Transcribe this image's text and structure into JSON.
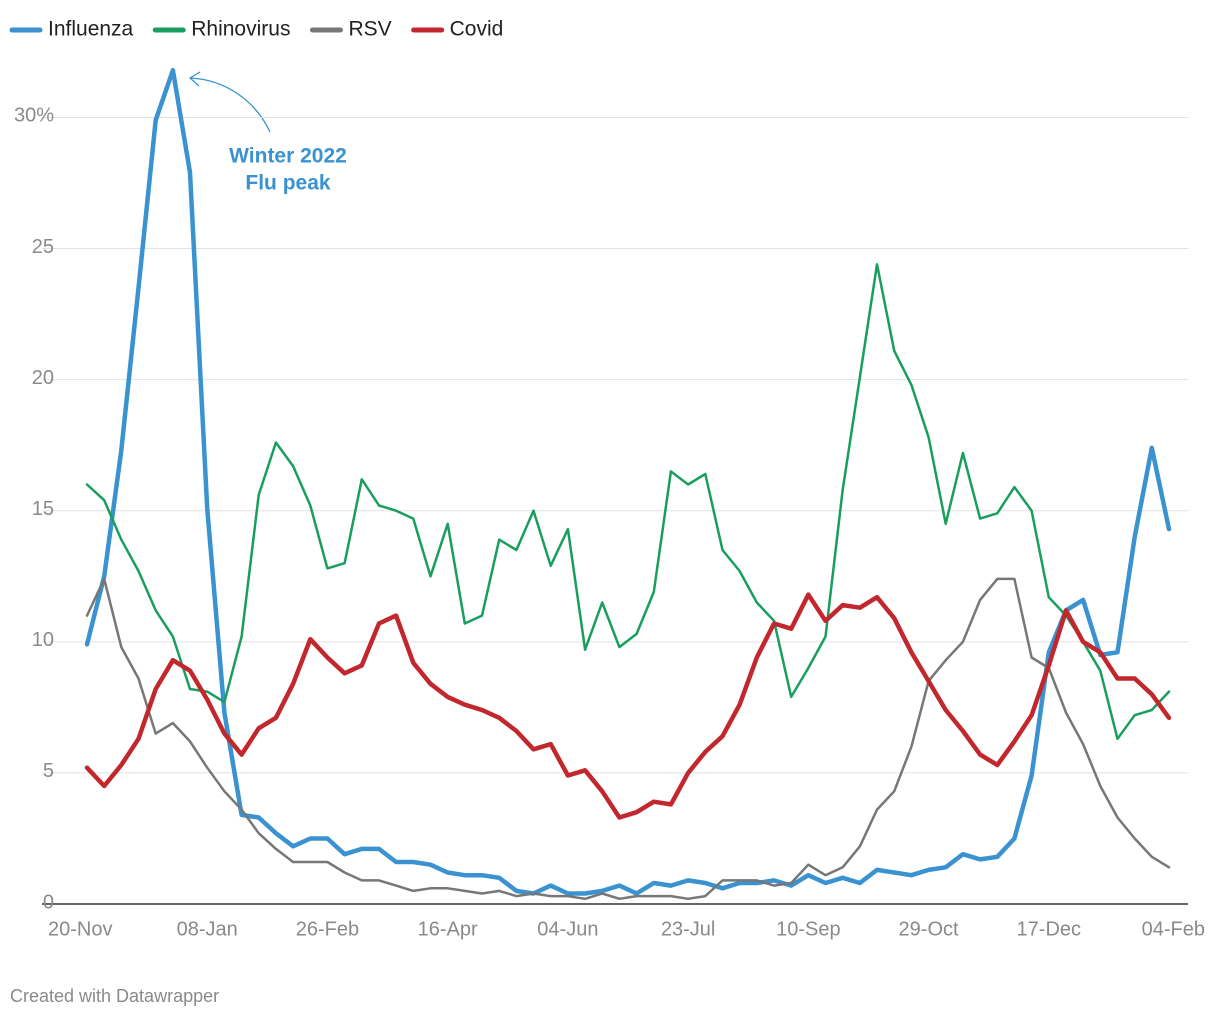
{
  "chart_data": {
    "type": "line",
    "categories": [
      "20-Nov",
      null,
      null,
      null,
      null,
      null,
      null,
      "08-Jan",
      null,
      null,
      null,
      null,
      null,
      null,
      "26-Feb",
      null,
      null,
      null,
      null,
      null,
      null,
      "16-Apr",
      null,
      null,
      null,
      null,
      null,
      null,
      "04-Jun",
      null,
      null,
      null,
      null,
      null,
      null,
      "23-Jul",
      null,
      null,
      null,
      null,
      null,
      null,
      "10-Sep",
      null,
      null,
      null,
      null,
      null,
      null,
      "29-Oct",
      null,
      null,
      null,
      null,
      null,
      null,
      "17-Dec",
      null,
      null,
      null,
      null,
      null,
      null,
      "04-Feb"
    ],
    "series": [
      {
        "name": "Influenza",
        "color": "#3a93d0",
        "line_width": 4.5,
        "values": [
          9.9,
          12.5,
          17.3,
          23.5,
          29.9,
          31.8,
          27.9,
          15.1,
          7.3,
          3.4,
          3.3,
          2.7,
          2.2,
          2.5,
          2.5,
          1.9,
          2.1,
          2.1,
          1.6,
          1.6,
          1.5,
          1.2,
          1.1,
          1.1,
          1.0,
          0.5,
          0.4,
          0.7,
          0.4,
          0.4,
          0.5,
          0.7,
          0.4,
          0.8,
          0.7,
          0.9,
          0.8,
          0.6,
          0.8,
          0.8,
          0.9,
          0.7,
          1.1,
          0.8,
          1.0,
          0.8,
          1.3,
          1.2,
          1.1,
          1.3,
          1.4,
          1.9,
          1.7,
          1.8,
          2.5,
          4.9,
          9.6,
          11.2,
          11.6,
          9.5,
          9.6,
          14.0,
          17.4,
          14.3
        ]
      },
      {
        "name": "Rhinovirus",
        "color": "#1a9e5f",
        "line_width": 2.5,
        "values": [
          16.0,
          15.4,
          13.9,
          12.7,
          11.2,
          10.2,
          8.2,
          8.1,
          7.7,
          10.2,
          15.6,
          17.6,
          16.7,
          15.2,
          12.8,
          13.0,
          16.2,
          15.2,
          15.0,
          14.7,
          12.5,
          14.5,
          10.7,
          11.0,
          13.9,
          13.5,
          15.0,
          12.9,
          14.3,
          9.7,
          11.5,
          9.8,
          10.3,
          11.9,
          16.5,
          16.0,
          16.4,
          13.5,
          12.7,
          11.5,
          10.8,
          7.9,
          9.0,
          10.2,
          15.8,
          20.1,
          24.4,
          21.1,
          19.8,
          17.8,
          14.5,
          17.2,
          14.7,
          14.9,
          15.9,
          15.0,
          11.7,
          11.0,
          10.0,
          8.9,
          6.3,
          7.2,
          7.4,
          8.1
        ]
      },
      {
        "name": "RSV",
        "color": "#777777",
        "line_width": 2.5,
        "values": [
          11.0,
          12.4,
          9.8,
          8.6,
          6.5,
          6.9,
          6.2,
          5.2,
          4.3,
          3.6,
          2.7,
          2.1,
          1.6,
          1.6,
          1.6,
          1.2,
          0.9,
          0.9,
          0.7,
          0.5,
          0.6,
          0.6,
          0.5,
          0.4,
          0.5,
          0.3,
          0.4,
          0.3,
          0.3,
          0.2,
          0.4,
          0.2,
          0.3,
          0.3,
          0.3,
          0.2,
          0.3,
          0.9,
          0.9,
          0.9,
          0.7,
          0.8,
          1.5,
          1.1,
          1.4,
          2.2,
          3.6,
          4.3,
          6.0,
          8.5,
          9.3,
          10.0,
          11.6,
          12.4,
          12.4,
          9.4,
          9.0,
          7.3,
          6.1,
          4.5,
          3.3,
          2.5,
          1.8,
          1.4
        ]
      },
      {
        "name": "Covid",
        "color": "#c1272d",
        "line_width": 4.5,
        "values": [
          5.2,
          4.5,
          5.3,
          6.3,
          8.2,
          9.3,
          8.9,
          7.8,
          6.5,
          5.7,
          6.7,
          7.1,
          8.4,
          10.1,
          9.4,
          8.8,
          9.1,
          10.7,
          11.0,
          9.2,
          8.4,
          7.9,
          7.6,
          7.4,
          7.1,
          6.6,
          5.9,
          6.1,
          4.9,
          5.1,
          4.3,
          3.3,
          3.5,
          3.9,
          3.8,
          5.0,
          5.8,
          6.4,
          7.6,
          9.4,
          10.7,
          10.5,
          11.8,
          10.8,
          11.4,
          11.3,
          11.7,
          10.9,
          9.6,
          8.5,
          7.4,
          6.6,
          5.7,
          5.3,
          6.2,
          7.2,
          9.1,
          11.2,
          10.0,
          9.6,
          8.6,
          8.6,
          8.0,
          7.1
        ]
      }
    ],
    "ylim": [
      0,
      32
    ],
    "yticks": [
      0,
      5,
      10,
      15,
      20,
      25,
      {
        "value": 30,
        "label": "30%"
      }
    ],
    "grid": true,
    "legend": "top-left",
    "annotation": [
      "Winter 2022",
      "Flu peak"
    ],
    "credit": "Created with Datawrapper"
  }
}
